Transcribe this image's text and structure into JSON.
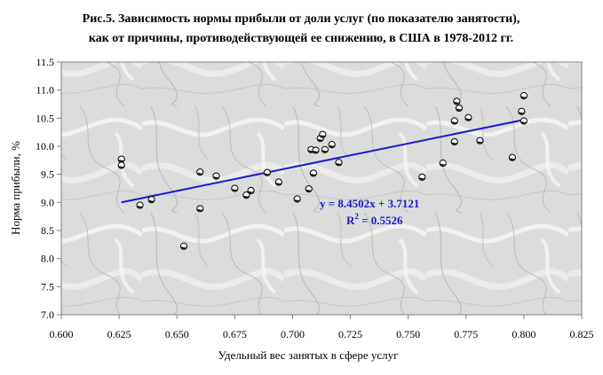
{
  "chart_data": {
    "type": "scatter",
    "title_line1": "Рис.5. Зависимость нормы прибыли от доли услуг (по показателю занятости),",
    "title_line2": "как от причины, противодействующей ее снижению,  в США в 1978-2012 гг.",
    "xlabel": "Удельный вес занятых в сфере услуг",
    "ylabel": "Норма прибыли, %",
    "xlim": [
      0.6,
      0.825
    ],
    "ylim": [
      7.0,
      11.5
    ],
    "x_ticks": [
      "0.600",
      "0.625",
      "0.650",
      "0.675",
      "0.700",
      "0.725",
      "0.750",
      "0.775",
      "0.800",
      "0.825"
    ],
    "y_ticks": [
      "7.0",
      "7.5",
      "8.0",
      "8.5",
      "9.0",
      "9.5",
      "10.0",
      "10.5",
      "11.0",
      "11.5"
    ],
    "grid": false,
    "legend": "none",
    "trendline": {
      "slope": 8.4502,
      "intercept": 3.7121,
      "x_range": [
        0.626,
        0.8
      ],
      "equation_text": "y = 8.4502x + 3.7121",
      "r2_prefix": "R",
      "r2_sup": "2",
      "r2_value": " = 0.5526",
      "color": "#1a1acc"
    },
    "points": [
      {
        "x": 0.626,
        "y": 9.77
      },
      {
        "x": 0.626,
        "y": 9.66
      },
      {
        "x": 0.634,
        "y": 8.95
      },
      {
        "x": 0.639,
        "y": 9.05
      },
      {
        "x": 0.653,
        "y": 8.22
      },
      {
        "x": 0.66,
        "y": 8.89
      },
      {
        "x": 0.66,
        "y": 9.54
      },
      {
        "x": 0.667,
        "y": 9.47
      },
      {
        "x": 0.675,
        "y": 9.25
      },
      {
        "x": 0.68,
        "y": 9.13
      },
      {
        "x": 0.682,
        "y": 9.21
      },
      {
        "x": 0.689,
        "y": 9.53
      },
      {
        "x": 0.694,
        "y": 9.36
      },
      {
        "x": 0.702,
        "y": 9.06
      },
      {
        "x": 0.707,
        "y": 9.24
      },
      {
        "x": 0.708,
        "y": 9.94
      },
      {
        "x": 0.709,
        "y": 9.52
      },
      {
        "x": 0.71,
        "y": 9.93
      },
      {
        "x": 0.712,
        "y": 10.14
      },
      {
        "x": 0.713,
        "y": 10.21
      },
      {
        "x": 0.714,
        "y": 9.94
      },
      {
        "x": 0.717,
        "y": 10.03
      },
      {
        "x": 0.72,
        "y": 9.71
      },
      {
        "x": 0.756,
        "y": 9.45
      },
      {
        "x": 0.765,
        "y": 9.7
      },
      {
        "x": 0.77,
        "y": 10.08
      },
      {
        "x": 0.77,
        "y": 10.45
      },
      {
        "x": 0.771,
        "y": 10.8
      },
      {
        "x": 0.772,
        "y": 10.68
      },
      {
        "x": 0.776,
        "y": 10.51
      },
      {
        "x": 0.781,
        "y": 10.1
      },
      {
        "x": 0.795,
        "y": 9.8
      },
      {
        "x": 0.799,
        "y": 10.62
      },
      {
        "x": 0.8,
        "y": 10.9
      },
      {
        "x": 0.8,
        "y": 10.45
      }
    ]
  }
}
